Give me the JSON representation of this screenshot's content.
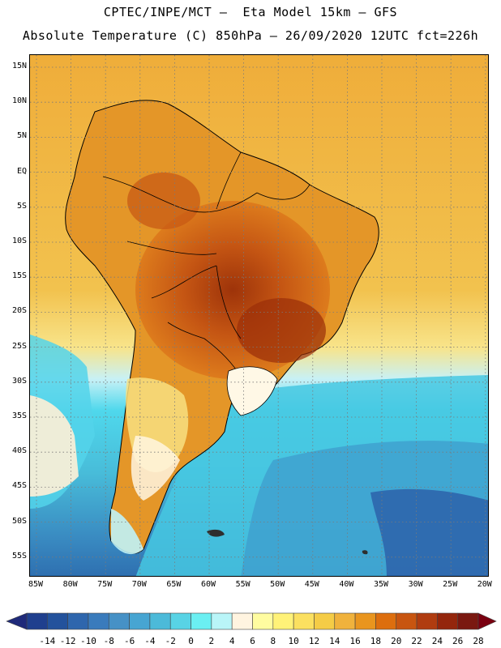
{
  "header": {
    "line1": "CPTEC/INPE/MCT –  Eta Model 15km – GFS",
    "line2": "Absolute Temperature (C) 850hPa – 26/09/2020 12UTC fct=226h"
  },
  "map": {
    "lat_labels": [
      "15N",
      "10N",
      "5N",
      "EQ",
      "5S",
      "10S",
      "15S",
      "20S",
      "25S",
      "30S",
      "35S",
      "40S",
      "45S",
      "50S",
      "55S"
    ],
    "lon_labels": [
      "85W",
      "80W",
      "75W",
      "70W",
      "65W",
      "60W",
      "55W",
      "50W",
      "45W",
      "40W",
      "35W",
      "30W",
      "25W",
      "20W"
    ],
    "grid": "dotted",
    "colors": {
      "ocean_warm": "#f0b23c",
      "ocean_cool": "#4fd8ec",
      "land_hot": "#c35212",
      "land_very_hot": "#9a2e08",
      "coast_line": "#000000"
    }
  },
  "colorbar": {
    "labels": [
      "-14",
      "-12",
      "-10",
      "-8",
      "-6",
      "-4",
      "-2",
      "0",
      "2",
      "4",
      "6",
      "8",
      "10",
      "12",
      "14",
      "16",
      "18",
      "20",
      "22",
      "24",
      "26",
      "28"
    ],
    "colors": [
      "#1f3f8e",
      "#23529c",
      "#2e66ad",
      "#3a7bbc",
      "#4691c6",
      "#47a5d2",
      "#4cbad9",
      "#58d3e5",
      "#6beff2",
      "#b9f5f8",
      "#fff4e0",
      "#fffca0",
      "#fff278",
      "#fbe060",
      "#f5cc46",
      "#f0b23c",
      "#e9951e",
      "#dd6e0e",
      "#c85510",
      "#b03c10",
      "#94260c",
      "#7a1810"
    ],
    "low_arrow_color": "#1f2a7a",
    "high_arrow_color": "#7a0010"
  }
}
